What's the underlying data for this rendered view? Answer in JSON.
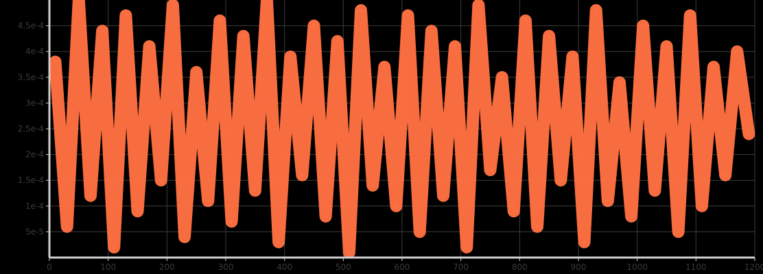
{
  "chart_data": {
    "type": "line",
    "title": "",
    "xlabel": "",
    "ylabel": "",
    "xlim": [
      0,
      1200
    ],
    "ylim": [
      0,
      0.0005
    ],
    "x_ticks": [
      0,
      100,
      200,
      300,
      400,
      500,
      600,
      700,
      800,
      900,
      1000,
      1100,
      1200
    ],
    "x_tick_labels": [
      "0",
      "100",
      "200",
      "300",
      "400",
      "500",
      "600",
      "700",
      "800",
      "900",
      "1000",
      "1100",
      "1200"
    ],
    "y_ticks": [
      5e-05,
      0.0001,
      0.00015,
      0.0002,
      0.00025,
      0.0003,
      0.00035,
      0.0004,
      0.00045
    ],
    "y_tick_labels": [
      "5e-5",
      "1e-4",
      "1.5e-4",
      "2e-4",
      "2.5e-4",
      "3e-4",
      "3.5e-4",
      "4e-4",
      "4.5e-4"
    ],
    "grid": true,
    "series": [
      {
        "color": "#ff7142",
        "x": [
          10,
          30,
          50,
          70,
          90,
          110,
          130,
          150,
          170,
          190,
          210,
          230,
          250,
          270,
          290,
          310,
          330,
          350,
          370,
          390,
          410,
          430,
          450,
          470,
          490,
          510,
          530,
          550,
          570,
          590,
          610,
          630,
          650,
          670,
          690,
          710,
          730,
          750,
          770,
          790,
          810,
          830,
          850,
          870,
          890,
          910,
          930,
          950,
          970,
          990,
          1010,
          1030,
          1050,
          1070,
          1090,
          1110,
          1130,
          1150,
          1170,
          1190
        ],
        "y": [
          0.00038,
          6e-05,
          0.0005,
          0.00012,
          0.00044,
          2e-05,
          0.00047,
          9e-05,
          0.00041,
          0.00015,
          0.00049,
          4e-05,
          0.00036,
          0.00011,
          0.00046,
          7e-05,
          0.00043,
          0.00013,
          0.0005,
          3e-05,
          0.00039,
          0.00016,
          0.00045,
          8e-05,
          0.00042,
          1e-05,
          0.00048,
          0.00014,
          0.00037,
          0.0001,
          0.00047,
          5e-05,
          0.00044,
          0.00012,
          0.00041,
          2e-05,
          0.00049,
          0.00017,
          0.00035,
          9e-05,
          0.00046,
          6e-05,
          0.00043,
          0.00015,
          0.00039,
          3e-05,
          0.00048,
          0.00011,
          0.00034,
          8e-05,
          0.00045,
          0.00013,
          0.00041,
          5e-05,
          0.00047,
          0.0001,
          0.00037,
          0.00016,
          0.0004,
          0.00024
        ]
      }
    ]
  }
}
